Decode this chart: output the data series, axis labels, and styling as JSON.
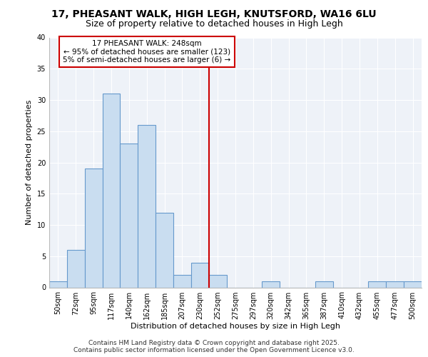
{
  "title_line1": "17, PHEASANT WALK, HIGH LEGH, KNUTSFORD, WA16 6LU",
  "title_line2": "Size of property relative to detached houses in High Legh",
  "xlabel": "Distribution of detached houses by size in High Legh",
  "ylabel": "Number of detached properties",
  "categories": [
    "50sqm",
    "72sqm",
    "95sqm",
    "117sqm",
    "140sqm",
    "162sqm",
    "185sqm",
    "207sqm",
    "230sqm",
    "252sqm",
    "275sqm",
    "297sqm",
    "320sqm",
    "342sqm",
    "365sqm",
    "387sqm",
    "410sqm",
    "432sqm",
    "455sqm",
    "477sqm",
    "500sqm"
  ],
  "values": [
    1,
    6,
    19,
    31,
    23,
    26,
    12,
    2,
    4,
    2,
    0,
    0,
    1,
    0,
    0,
    1,
    0,
    0,
    1,
    1,
    1
  ],
  "bar_facecolor": "#c9ddf0",
  "bar_edgecolor": "#6699cc",
  "vertical_line_color": "#cc0000",
  "vertical_line_x": 9,
  "annotation_box_text": "17 PHEASANT WALK: 248sqm\n← 95% of detached houses are smaller (123)\n5% of semi-detached houses are larger (6) →",
  "annotation_box_facecolor": "white",
  "annotation_box_edgecolor": "#cc0000",
  "ylim": [
    0,
    40
  ],
  "yticks": [
    0,
    5,
    10,
    15,
    20,
    25,
    30,
    35,
    40
  ],
  "footer_line1": "Contains HM Land Registry data © Crown copyright and database right 2025.",
  "footer_line2": "Contains public sector information licensed under the Open Government Licence v3.0.",
  "bg_color": "#ffffff",
  "plot_bg_color": "#eef2f8",
  "grid_color": "#ffffff",
  "title_fontsize": 10,
  "subtitle_fontsize": 9,
  "axis_label_fontsize": 8,
  "tick_fontsize": 7,
  "footer_fontsize": 6.5
}
